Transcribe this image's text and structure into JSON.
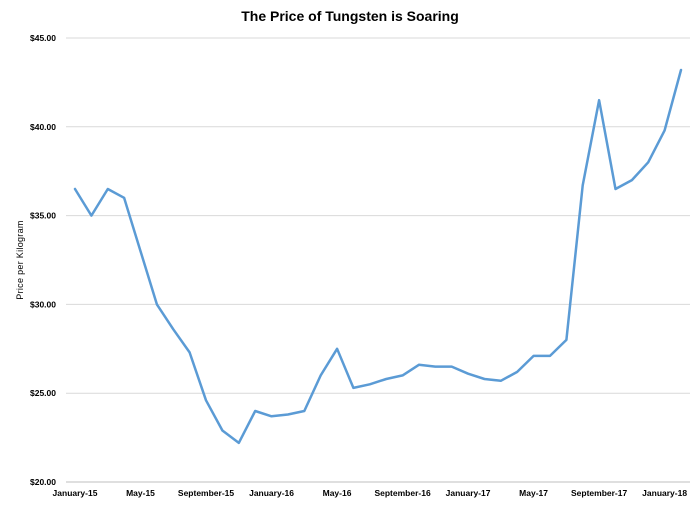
{
  "chart_data": {
    "type": "line",
    "title": "The Price of Tungsten is Soaring",
    "xlabel": "",
    "ylabel": "Price per Kilogram",
    "ylim": [
      20,
      45
    ],
    "yticks": [
      20,
      25,
      30,
      35,
      40,
      45
    ],
    "ytick_labels": [
      "$20.00",
      "$25.00",
      "$30.00",
      "$35.00",
      "$40.00",
      "$45.00"
    ],
    "x_tick_labels": [
      {
        "index": 0,
        "label": "January-15"
      },
      {
        "index": 4,
        "label": "May-15"
      },
      {
        "index": 8,
        "label": "September-15"
      },
      {
        "index": 12,
        "label": "January-16"
      },
      {
        "index": 16,
        "label": "May-16"
      },
      {
        "index": 20,
        "label": "September-16"
      },
      {
        "index": 24,
        "label": "January-17"
      },
      {
        "index": 28,
        "label": "May-17"
      },
      {
        "index": 32,
        "label": "September-17"
      },
      {
        "index": 36,
        "label": "January-18"
      }
    ],
    "grid": true,
    "line_color": "#5B9BD5",
    "grid_color": "#d9d9d9",
    "series": [
      {
        "values": [
          36.5,
          35.0,
          36.5,
          36.0,
          33.0,
          30.0,
          28.6,
          27.3,
          24.6,
          22.9,
          22.2,
          24.0,
          23.7,
          23.8,
          24.0,
          26.0,
          27.5,
          25.3,
          25.5,
          25.8,
          26.0,
          26.6,
          26.5,
          26.5,
          26.1,
          25.8,
          25.7,
          26.2,
          27.1,
          27.1,
          28.0,
          36.7,
          41.5,
          36.5,
          37.0,
          38.0,
          39.8,
          43.2
        ]
      }
    ]
  }
}
